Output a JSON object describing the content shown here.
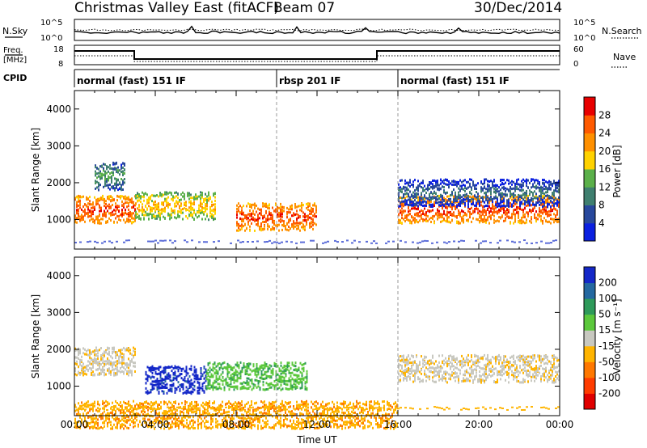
{
  "header": {
    "title": "Christmas Valley East (fitACF)",
    "beam": "Beam 07",
    "date": "30/Dec/2014"
  },
  "aux_panels": {
    "nsky_label": "N.Sky",
    "nsky_ticks": [
      "10^5",
      "10^0"
    ],
    "nsearch_label": "N.Search",
    "nsearch_ticks": [
      "10^5",
      "10^0"
    ],
    "freq_label_1": "Freq.",
    "freq_label_2": "[MHz]",
    "freq_ticks": [
      "18",
      "8"
    ],
    "nave_label": "Nave",
    "nave_ticks": [
      "60",
      "0"
    ],
    "cpid_label": "CPID",
    "cpid_segments": [
      {
        "label": "normal (fast) 151 IF",
        "start": 0,
        "end": 10
      },
      {
        "label": "rbsp 201 IF",
        "start": 10,
        "end": 16
      },
      {
        "label": "normal (fast) 151 IF",
        "start": 16,
        "end": 24
      }
    ]
  },
  "chart_data": [
    {
      "type": "heatmap",
      "name": "power",
      "ylabel": "Slant Range [km]",
      "ylim": [
        200,
        4500
      ],
      "y_ticks": [
        "1000",
        "2000",
        "3000",
        "4000"
      ],
      "x_hours": [
        0,
        4,
        8,
        12,
        16,
        20,
        24
      ],
      "colorbar": {
        "label": "Power [dB]",
        "ticks": [
          "4",
          "8",
          "12",
          "16",
          "20",
          "24",
          "28"
        ],
        "colors": [
          "#0b20e0",
          "#28489c",
          "#3f7f6f",
          "#5bb04a",
          "#ffd200",
          "#ff9000",
          "#ff5a00",
          "#e80000"
        ]
      },
      "echo_bands": [
        {
          "start_h": 0.0,
          "end_h": 3.0,
          "range_km": 1300,
          "level": 28
        },
        {
          "start_h": 1.0,
          "end_h": 2.5,
          "range_km": 2200,
          "level": 12
        },
        {
          "start_h": 3.0,
          "end_h": 7.0,
          "range_km": 1400,
          "level": 20
        },
        {
          "start_h": 8.0,
          "end_h": 12.0,
          "range_km": 1100,
          "level": 28
        },
        {
          "start_h": 16.0,
          "end_h": 24.0,
          "range_km": 1300,
          "level": 28
        },
        {
          "start_h": 16.0,
          "end_h": 24.0,
          "range_km": 1750,
          "level": 8
        }
      ]
    },
    {
      "type": "heatmap",
      "name": "velocity",
      "ylabel": "Slant Range [km]",
      "xlabel": "Time UT",
      "ylim": [
        200,
        4500
      ],
      "y_ticks": [
        "1000",
        "2000",
        "3000",
        "4000"
      ],
      "x_tick_labels": [
        "00:00",
        "04:00",
        "08:00",
        "12:00",
        "16:00",
        "20:00",
        "00:00"
      ],
      "colorbar": {
        "label": "Velocity [m s⁻¹]",
        "ticks": [
          "200",
          "100",
          "50",
          "15",
          "-15",
          "-50",
          "-100",
          "-200"
        ],
        "colors": [
          "#1428c8",
          "#2468a0",
          "#2e9a5a",
          "#5cc83c",
          "#c8c8c0",
          "#ffb400",
          "#ff7800",
          "#ff3c00",
          "#e00000"
        ]
      },
      "echo_bands": [
        {
          "start_h": 0.0,
          "end_h": 3.0,
          "range_km": 1700,
          "velocity": -10
        },
        {
          "start_h": 3.5,
          "end_h": 6.5,
          "range_km": 1200,
          "velocity": 200
        },
        {
          "start_h": 6.5,
          "end_h": 11.5,
          "range_km": 1300,
          "velocity": 60
        },
        {
          "start_h": 16.0,
          "end_h": 24.0,
          "range_km": 1500,
          "velocity": -10
        },
        {
          "start_h": 0.0,
          "end_h": 16.0,
          "range_km": 250,
          "velocity": -60
        }
      ]
    }
  ]
}
